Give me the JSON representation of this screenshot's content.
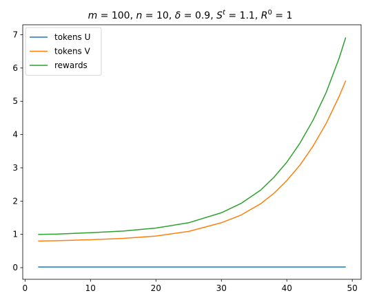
{
  "chart_data": {
    "type": "line",
    "title": {
      "m_label": "m",
      "m_value": "100",
      "n_label": "n",
      "n_value": "10",
      "delta_label": "δ",
      "delta_value": "0.9",
      "s_label": "S",
      "s_sup": "t",
      "s_value": "1.1",
      "r_label": "R",
      "r_sup": "0",
      "r_value": "1"
    },
    "xlabel": "",
    "ylabel": "",
    "xlim": [
      -0.35,
      51.35
    ],
    "ylim": [
      -0.35,
      7.3
    ],
    "xticks": [
      0,
      10,
      20,
      30,
      40,
      50
    ],
    "yticks": [
      0,
      1,
      2,
      3,
      4,
      5,
      6,
      7
    ],
    "legend_position": "upper-left",
    "grid": false,
    "series": [
      {
        "name": "tokens U",
        "color": "#1f77b4",
        "x": [
          2,
          49
        ],
        "y": [
          0.02,
          0.02
        ]
      },
      {
        "name": "tokens V",
        "color": "#ff7f0e",
        "x": [
          2,
          5,
          10,
          15,
          20,
          25,
          30,
          33,
          36,
          38,
          40,
          42,
          44,
          46,
          48,
          49
        ],
        "y": [
          0.8,
          0.81,
          0.84,
          0.88,
          0.95,
          1.09,
          1.35,
          1.58,
          1.92,
          2.23,
          2.62,
          3.08,
          3.65,
          4.33,
          5.15,
          5.62
        ]
      },
      {
        "name": "rewards",
        "color": "#2ca02c",
        "x": [
          2,
          5,
          10,
          15,
          20,
          25,
          30,
          33,
          36,
          38,
          40,
          42,
          44,
          46,
          48,
          49
        ],
        "y": [
          1.0,
          1.01,
          1.05,
          1.1,
          1.19,
          1.35,
          1.65,
          1.93,
          2.33,
          2.71,
          3.17,
          3.74,
          4.43,
          5.26,
          6.3,
          6.92
        ]
      }
    ]
  }
}
